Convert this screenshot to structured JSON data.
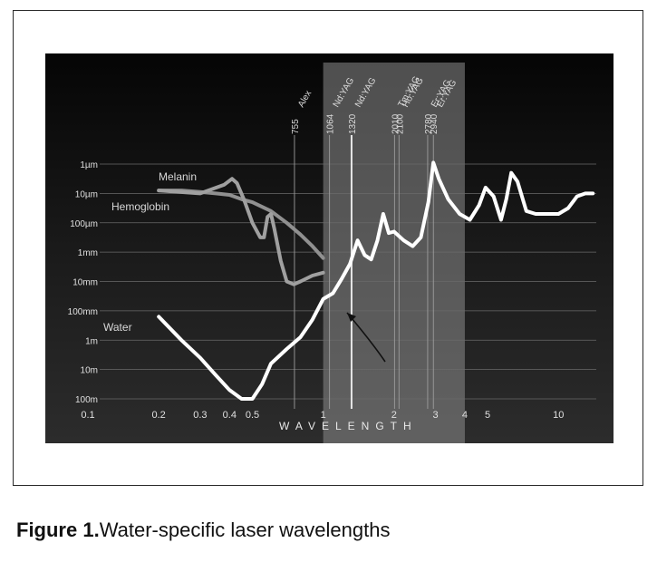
{
  "figure": {
    "caption_label": "Figure 1.",
    "caption_text": "Water-specific laser wavelengths"
  },
  "chart_data": {
    "type": "line",
    "xlabel": "WAVELENGTH",
    "x_scale": "log",
    "xlim": [
      0.1,
      15
    ],
    "x_ticks": [
      "0.1",
      "0.2",
      "0.3",
      "0.4",
      "0.5",
      "1",
      "2",
      "3",
      "4",
      "5",
      "10"
    ],
    "x_tick_values": [
      0.1,
      0.2,
      0.3,
      0.4,
      0.5,
      1,
      2,
      3,
      4,
      5,
      10
    ],
    "y_ticks": [
      "1µm",
      "10µm",
      "100µm",
      "1mm",
      "10mm",
      "100mm",
      "1m",
      "10m",
      "100m"
    ],
    "y_scale": "log-descending",
    "highlight_band": [
      1.0,
      4.0
    ],
    "lasers": [
      {
        "name": "Alex",
        "nm": "755",
        "x": 0.755
      },
      {
        "name": "Nd:YAG",
        "nm": "1064",
        "x": 1.064
      },
      {
        "name": "Nd:YAG",
        "nm": "1320",
        "x": 1.32
      },
      {
        "name": "Tm:YAG",
        "nm": "2010",
        "x": 2.01
      },
      {
        "name": "Ho:YAG",
        "nm": "2100",
        "x": 2.1
      },
      {
        "name": "Er:YAG",
        "nm": "2780",
        "x": 2.78
      },
      {
        "name": "Er:YAG",
        "nm": "2940",
        "x": 2.94
      }
    ],
    "series": [
      {
        "name": "Water",
        "color": "#ffffff",
        "points": [
          [
            0.2,
            5.2
          ],
          [
            0.25,
            6.0
          ],
          [
            0.3,
            6.6
          ],
          [
            0.35,
            7.2
          ],
          [
            0.4,
            7.7
          ],
          [
            0.45,
            8.0
          ],
          [
            0.5,
            8.0
          ],
          [
            0.55,
            7.5
          ],
          [
            0.6,
            6.8
          ],
          [
            0.7,
            6.3
          ],
          [
            0.8,
            5.9
          ],
          [
            0.9,
            5.3
          ],
          [
            1.0,
            4.6
          ],
          [
            1.1,
            4.4
          ],
          [
            1.2,
            3.9
          ],
          [
            1.3,
            3.4
          ],
          [
            1.4,
            2.6
          ],
          [
            1.5,
            3.1
          ],
          [
            1.6,
            3.25
          ],
          [
            1.7,
            2.6
          ],
          [
            1.8,
            1.7
          ],
          [
            1.9,
            2.35
          ],
          [
            2.0,
            2.3
          ],
          [
            2.2,
            2.6
          ],
          [
            2.4,
            2.8
          ],
          [
            2.6,
            2.5
          ],
          [
            2.8,
            1.3
          ],
          [
            2.94,
            -0.05
          ],
          [
            3.1,
            0.5
          ],
          [
            3.4,
            1.2
          ],
          [
            3.8,
            1.7
          ],
          [
            4.2,
            1.9
          ],
          [
            4.6,
            1.4
          ],
          [
            4.9,
            0.8
          ],
          [
            5.3,
            1.1
          ],
          [
            5.7,
            1.9
          ],
          [
            6.0,
            1.2
          ],
          [
            6.3,
            0.3
          ],
          [
            6.7,
            0.6
          ],
          [
            7.3,
            1.6
          ],
          [
            8,
            1.7
          ],
          [
            9,
            1.7
          ],
          [
            10,
            1.7
          ],
          [
            11,
            1.5
          ],
          [
            12,
            1.1
          ],
          [
            13,
            1.0
          ],
          [
            14,
            1.0
          ]
        ]
      },
      {
        "name": "Melanin",
        "color": "#909090",
        "points": [
          [
            0.2,
            0.9
          ],
          [
            0.25,
            0.9
          ],
          [
            0.3,
            0.95
          ],
          [
            0.35,
            1.0
          ],
          [
            0.4,
            1.05
          ],
          [
            0.45,
            1.2
          ],
          [
            0.5,
            1.3
          ],
          [
            0.6,
            1.6
          ],
          [
            0.7,
            2.0
          ],
          [
            0.8,
            2.4
          ],
          [
            0.9,
            2.8
          ],
          [
            1.0,
            3.2
          ]
        ]
      },
      {
        "name": "Hemoglobin",
        "color": "#a0a0a0",
        "points": [
          [
            0.2,
            0.9
          ],
          [
            0.3,
            1.0
          ],
          [
            0.38,
            0.7
          ],
          [
            0.41,
            0.5
          ],
          [
            0.43,
            0.65
          ],
          [
            0.46,
            1.2
          ],
          [
            0.5,
            2.0
          ],
          [
            0.54,
            2.5
          ],
          [
            0.56,
            2.5
          ],
          [
            0.58,
            1.8
          ],
          [
            0.6,
            1.7
          ],
          [
            0.62,
            2.2
          ],
          [
            0.66,
            3.3
          ],
          [
            0.7,
            4.0
          ],
          [
            0.75,
            4.1
          ],
          [
            0.8,
            4.0
          ],
          [
            0.9,
            3.8
          ],
          [
            1.0,
            3.7
          ]
        ]
      }
    ]
  }
}
